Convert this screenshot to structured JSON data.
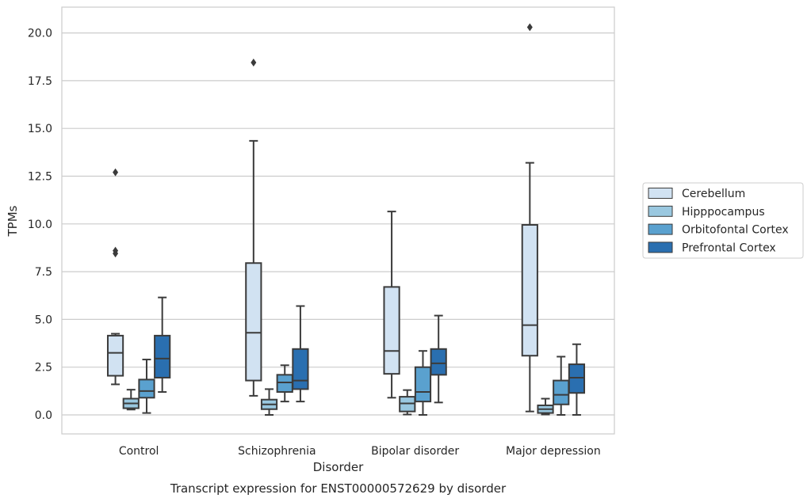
{
  "chart_data": {
    "type": "box",
    "caption": "Transcript expression for ENST00000572629 by disorder",
    "xlabel": "Disorder",
    "ylabel": "TPMs",
    "ylim": [
      -1.0,
      21.3
    ],
    "yticks": [
      "0.0",
      "2.5",
      "5.0",
      "7.5",
      "10.0",
      "12.5",
      "15.0",
      "17.5",
      "20.0"
    ],
    "grid": "horizontal",
    "legend_placement": "right",
    "categories": [
      "Control",
      "Schizophrenia",
      "Bipolar disorder",
      "Major depression"
    ],
    "series": [
      {
        "name": "Cerebellum",
        "color": "#d1e2f2",
        "boxes": [
          {
            "whisker_low": 1.6,
            "q1": 2.05,
            "median": 3.25,
            "q3": 4.15,
            "whisker_high": 4.25,
            "outliers": [
              8.45,
              8.6,
              12.7
            ]
          },
          {
            "whisker_low": 1.0,
            "q1": 1.8,
            "median": 4.3,
            "q3": 7.95,
            "whisker_high": 14.35,
            "outliers": [
              18.45
            ]
          },
          {
            "whisker_low": 0.9,
            "q1": 2.15,
            "median": 3.35,
            "q3": 6.7,
            "whisker_high": 10.65,
            "outliers": []
          },
          {
            "whisker_low": 0.18,
            "q1": 3.1,
            "median": 4.7,
            "q3": 9.95,
            "whisker_high": 13.2,
            "outliers": [
              20.3
            ]
          }
        ]
      },
      {
        "name": "Hipppocampus",
        "color": "#9ac8e0",
        "boxes": [
          {
            "whisker_low": 0.28,
            "q1": 0.35,
            "median": 0.6,
            "q3": 0.85,
            "whisker_high": 1.32,
            "outliers": []
          },
          {
            "whisker_low": 0.0,
            "q1": 0.3,
            "median": 0.55,
            "q3": 0.8,
            "whisker_high": 1.35,
            "outliers": []
          },
          {
            "whisker_low": 0.02,
            "q1": 0.18,
            "median": 0.6,
            "q3": 0.95,
            "whisker_high": 1.3,
            "outliers": []
          },
          {
            "whisker_low": 0.02,
            "q1": 0.1,
            "median": 0.3,
            "q3": 0.5,
            "whisker_high": 0.85,
            "outliers": []
          }
        ]
      },
      {
        "name": "Orbitofontal Cortex",
        "color": "#5aa1cf",
        "boxes": [
          {
            "whisker_low": 0.1,
            "q1": 0.9,
            "median": 1.25,
            "q3": 1.85,
            "whisker_high": 2.9,
            "outliers": []
          },
          {
            "whisker_low": 0.7,
            "q1": 1.2,
            "median": 1.7,
            "q3": 2.1,
            "whisker_high": 2.6,
            "outliers": []
          },
          {
            "whisker_low": 0.0,
            "q1": 0.7,
            "median": 1.2,
            "q3": 2.5,
            "whisker_high": 3.35,
            "outliers": []
          },
          {
            "whisker_low": 0.0,
            "q1": 0.55,
            "median": 1.05,
            "q3": 1.8,
            "whisker_high": 3.05,
            "outliers": []
          }
        ]
      },
      {
        "name": "Prefrontal Cortex",
        "color": "#2a6fb0",
        "boxes": [
          {
            "whisker_low": 1.2,
            "q1": 1.95,
            "median": 2.95,
            "q3": 4.15,
            "whisker_high": 6.15,
            "outliers": []
          },
          {
            "whisker_low": 0.7,
            "q1": 1.35,
            "median": 1.8,
            "q3": 3.45,
            "whisker_high": 5.7,
            "outliers": []
          },
          {
            "whisker_low": 0.65,
            "q1": 2.1,
            "median": 2.7,
            "q3": 3.45,
            "whisker_high": 5.2,
            "outliers": []
          },
          {
            "whisker_low": 0.0,
            "q1": 1.15,
            "median": 1.95,
            "q3": 2.65,
            "whisker_high": 3.7,
            "outliers": []
          }
        ]
      }
    ]
  }
}
